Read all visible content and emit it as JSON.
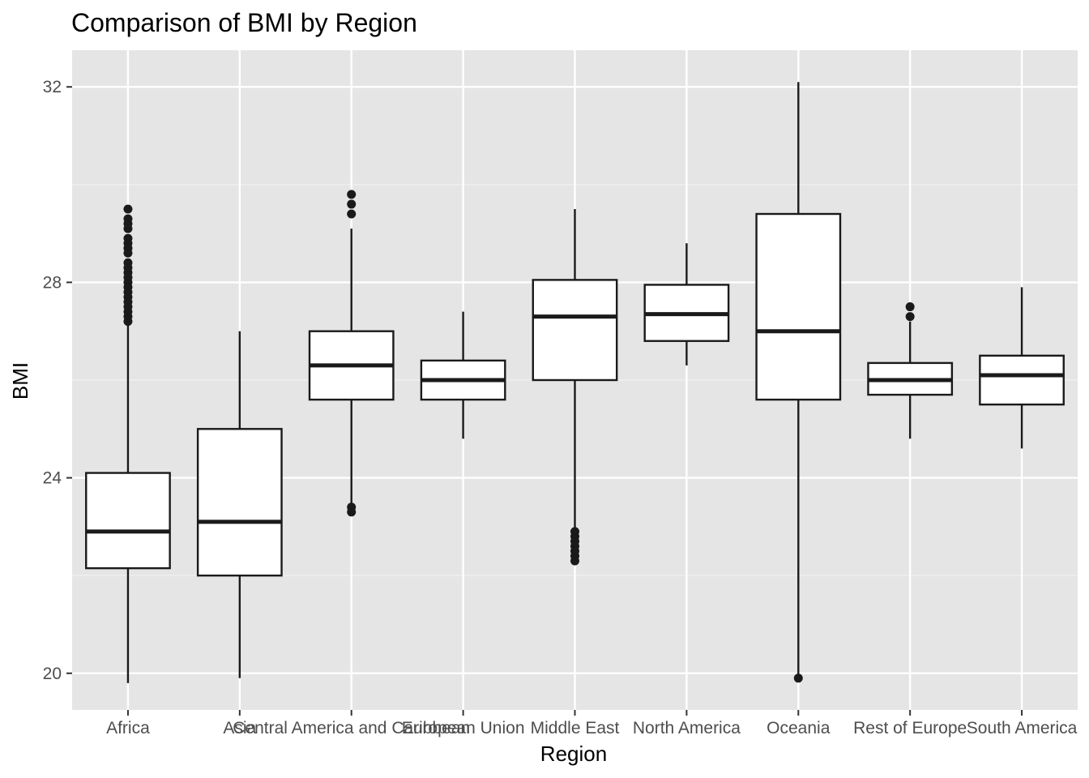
{
  "chart_data": {
    "type": "boxplot",
    "title": "Comparison of BMI by Region",
    "xlabel": "Region",
    "ylabel": "BMI",
    "ylim": [
      19.25,
      32.75
    ],
    "yticks": [
      20,
      24,
      28,
      32
    ],
    "yminor": [
      22,
      26,
      30
    ],
    "grid": true,
    "legend": "none",
    "categories": [
      "Africa",
      "Asia",
      "Central America and Caribbean",
      "European Union",
      "Middle East",
      "North America",
      "Oceania",
      "Rest of Europe",
      "South America"
    ],
    "boxes": [
      {
        "q1": 22.15,
        "median": 22.9,
        "q3": 24.1,
        "low": 19.8,
        "high": 27.2,
        "outliers": [
          27.2,
          27.3,
          27.4,
          27.5,
          27.6,
          27.7,
          27.8,
          27.9,
          28.0,
          28.1,
          28.2,
          28.3,
          28.4,
          28.6,
          28.7,
          28.8,
          28.9,
          29.1,
          29.2,
          29.3,
          29.5
        ]
      },
      {
        "q1": 22.0,
        "median": 23.1,
        "q3": 25.0,
        "low": 19.9,
        "high": 27.0,
        "outliers": []
      },
      {
        "q1": 25.6,
        "median": 26.3,
        "q3": 27.0,
        "low": 23.4,
        "high": 29.1,
        "outliers": [
          23.3,
          23.4,
          29.4,
          29.6,
          29.8
        ]
      },
      {
        "q1": 25.6,
        "median": 26.0,
        "q3": 26.4,
        "low": 24.8,
        "high": 27.4,
        "outliers": []
      },
      {
        "q1": 26.0,
        "median": 27.3,
        "q3": 28.05,
        "low": 22.9,
        "high": 29.5,
        "outliers": [
          22.3,
          22.4,
          22.5,
          22.6,
          22.7,
          22.8,
          22.9
        ]
      },
      {
        "q1": 26.8,
        "median": 27.35,
        "q3": 27.95,
        "low": 26.3,
        "high": 28.8,
        "outliers": []
      },
      {
        "q1": 25.6,
        "median": 27.0,
        "q3": 29.4,
        "low": 19.9,
        "high": 32.1,
        "outliers": [
          19.9
        ]
      },
      {
        "q1": 25.7,
        "median": 26.0,
        "q3": 26.35,
        "low": 24.8,
        "high": 27.2,
        "outliers": [
          27.3,
          27.5
        ]
      },
      {
        "q1": 25.5,
        "median": 26.1,
        "q3": 26.5,
        "low": 24.6,
        "high": 27.9,
        "outliers": []
      }
    ],
    "colors": {
      "panel": "#e5e5e5",
      "grid_major": "#ffffff",
      "grid_minor": "#f2f2f2",
      "box_fill": "#ffffff",
      "box_stroke": "#1a1a1a",
      "median": "#1a1a1a",
      "outlier": "#1a1a1a",
      "tick": "#333333"
    }
  }
}
